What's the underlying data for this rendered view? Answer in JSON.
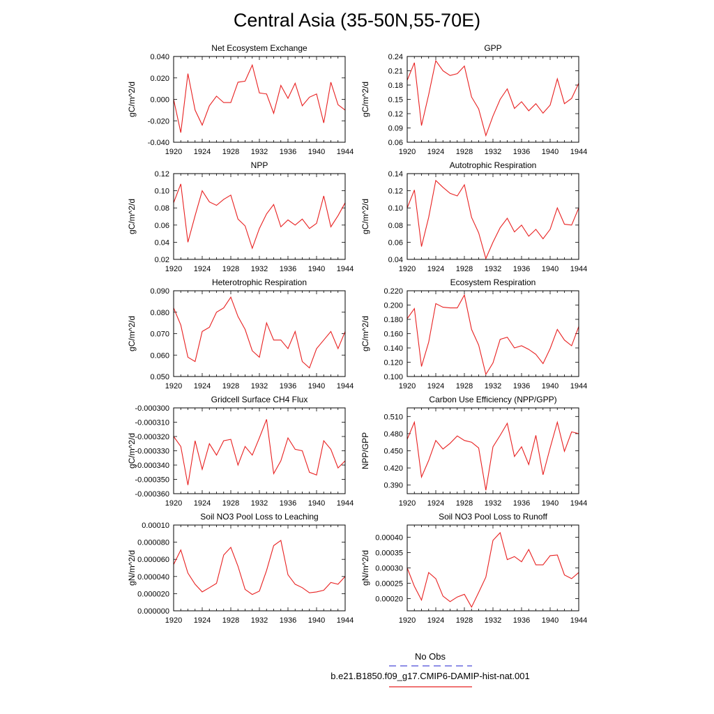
{
  "title": "Central Asia (35-50N,55-70E)",
  "legend": {
    "entries": [
      {
        "label": "No Obs",
        "color": "#4a4ad8",
        "dash": true
      },
      {
        "label": "b.e21.B1850.f09_g17.CMIP6-DAMIP-hist-nat.001",
        "color": "#e82020",
        "dash": false
      }
    ]
  },
  "chart_data": [
    {
      "type": "line",
      "title": "Net Ecosystem Exchange",
      "ylabel": "gC/m^2/d",
      "ylim": [
        -0.04,
        0.04
      ],
      "yticks": [
        -0.04,
        -0.02,
        0,
        0.02,
        0.04
      ],
      "ytick_labels": [
        "-0.040",
        "-0.020",
        "0.000",
        "0.020",
        "0.040"
      ],
      "xlim": [
        1920,
        1944
      ],
      "xticks": [
        1920,
        1924,
        1928,
        1932,
        1936,
        1940,
        1944
      ],
      "xtick_labels": [
        "1920",
        "1924",
        "1928",
        "1932",
        "1936",
        "1940",
        "1944"
      ],
      "x": [
        1920,
        1921,
        1922,
        1923,
        1924,
        1925,
        1926,
        1927,
        1928,
        1929,
        1930,
        1931,
        1932,
        1933,
        1934,
        1935,
        1936,
        1937,
        1938,
        1939,
        1940,
        1941,
        1942,
        1943,
        1944
      ],
      "values": [
        0.0,
        -0.031,
        0.024,
        -0.01,
        -0.024,
        -0.006,
        0.003,
        -0.003,
        -0.003,
        0.016,
        0.017,
        0.032,
        0.006,
        0.005,
        -0.013,
        0.013,
        0.001,
        0.015,
        -0.006,
        0.002,
        0.005,
        -0.022,
        0.016,
        -0.005,
        -0.01
      ]
    },
    {
      "type": "line",
      "title": "GPP",
      "ylabel": "gC/m^2/d",
      "ylim": [
        0.06,
        0.24
      ],
      "yticks": [
        0.06,
        0.09,
        0.12,
        0.15,
        0.18,
        0.21,
        0.24
      ],
      "ytick_labels": [
        "0.06",
        "0.09",
        "0.12",
        "0.15",
        "0.18",
        "0.21",
        "0.24"
      ],
      "xlim": [
        1920,
        1944
      ],
      "xticks": [
        1920,
        1924,
        1928,
        1932,
        1936,
        1940,
        1944
      ],
      "xtick_labels": [
        "1920",
        "1924",
        "1928",
        "1932",
        "1936",
        "1940",
        "1944"
      ],
      "x": [
        1920,
        1921,
        1922,
        1923,
        1924,
        1925,
        1926,
        1927,
        1928,
        1929,
        1930,
        1931,
        1932,
        1933,
        1934,
        1935,
        1936,
        1937,
        1938,
        1939,
        1940,
        1941,
        1942,
        1943,
        1944
      ],
      "values": [
        0.19,
        0.227,
        0.095,
        0.16,
        0.231,
        0.21,
        0.2,
        0.204,
        0.22,
        0.155,
        0.13,
        0.074,
        0.115,
        0.15,
        0.172,
        0.131,
        0.145,
        0.126,
        0.141,
        0.121,
        0.138,
        0.193,
        0.141,
        0.152,
        0.184
      ]
    },
    {
      "type": "line",
      "title": "NPP",
      "ylabel": "gC/m^2/d",
      "ylim": [
        0.02,
        0.12
      ],
      "yticks": [
        0.02,
        0.04,
        0.06,
        0.08,
        0.1,
        0.12
      ],
      "ytick_labels": [
        "0.02",
        "0.04",
        "0.06",
        "0.08",
        "0.10",
        "0.12"
      ],
      "xlim": [
        1920,
        1944
      ],
      "xticks": [
        1920,
        1924,
        1928,
        1932,
        1936,
        1940,
        1944
      ],
      "xtick_labels": [
        "1920",
        "1924",
        "1928",
        "1932",
        "1936",
        "1940",
        "1944"
      ],
      "x": [
        1920,
        1921,
        1922,
        1923,
        1924,
        1925,
        1926,
        1927,
        1928,
        1929,
        1930,
        1931,
        1932,
        1933,
        1934,
        1935,
        1936,
        1937,
        1938,
        1939,
        1940,
        1941,
        1942,
        1943,
        1944
      ],
      "values": [
        0.086,
        0.108,
        0.04,
        0.071,
        0.1,
        0.087,
        0.083,
        0.09,
        0.095,
        0.067,
        0.059,
        0.033,
        0.056,
        0.073,
        0.084,
        0.058,
        0.066,
        0.06,
        0.067,
        0.056,
        0.062,
        0.094,
        0.058,
        0.071,
        0.086
      ]
    },
    {
      "type": "line",
      "title": "Autotrophic Respiration",
      "ylabel": "gC/m^2/d",
      "ylim": [
        0.04,
        0.14
      ],
      "yticks": [
        0.04,
        0.06,
        0.08,
        0.1,
        0.12,
        0.14
      ],
      "ytick_labels": [
        "0.04",
        "0.06",
        "0.08",
        "0.10",
        "0.12",
        "0.14"
      ],
      "xlim": [
        1920,
        1944
      ],
      "xticks": [
        1920,
        1924,
        1928,
        1932,
        1936,
        1940,
        1944
      ],
      "xtick_labels": [
        "1920",
        "1924",
        "1928",
        "1932",
        "1936",
        "1940",
        "1944"
      ],
      "x": [
        1920,
        1921,
        1922,
        1923,
        1924,
        1925,
        1926,
        1927,
        1928,
        1929,
        1930,
        1931,
        1932,
        1933,
        1934,
        1935,
        1936,
        1937,
        1938,
        1939,
        1940,
        1941,
        1942,
        1943,
        1944
      ],
      "values": [
        0.1,
        0.121,
        0.055,
        0.089,
        0.132,
        0.124,
        0.117,
        0.114,
        0.127,
        0.089,
        0.071,
        0.041,
        0.06,
        0.077,
        0.088,
        0.072,
        0.08,
        0.067,
        0.075,
        0.064,
        0.075,
        0.1,
        0.081,
        0.08,
        0.1
      ]
    },
    {
      "type": "line",
      "title": "Heterotrophic Respiration",
      "ylabel": "gC/m^2/d",
      "ylim": [
        0.05,
        0.09
      ],
      "yticks": [
        0.05,
        0.06,
        0.07,
        0.08,
        0.09
      ],
      "ytick_labels": [
        "0.050",
        "0.060",
        "0.070",
        "0.080",
        "0.090"
      ],
      "xlim": [
        1920,
        1944
      ],
      "xticks": [
        1920,
        1924,
        1928,
        1932,
        1936,
        1940,
        1944
      ],
      "xtick_labels": [
        "1920",
        "1924",
        "1928",
        "1932",
        "1936",
        "1940",
        "1944"
      ],
      "x": [
        1920,
        1921,
        1922,
        1923,
        1924,
        1925,
        1926,
        1927,
        1928,
        1929,
        1930,
        1931,
        1932,
        1933,
        1934,
        1935,
        1936,
        1937,
        1938,
        1939,
        1940,
        1941,
        1942,
        1943,
        1944
      ],
      "values": [
        0.082,
        0.074,
        0.059,
        0.057,
        0.071,
        0.073,
        0.08,
        0.082,
        0.087,
        0.078,
        0.072,
        0.062,
        0.059,
        0.075,
        0.067,
        0.067,
        0.063,
        0.071,
        0.057,
        0.054,
        0.063,
        0.067,
        0.071,
        0.063,
        0.071
      ]
    },
    {
      "type": "line",
      "title": "Ecosystem Respiration",
      "ylabel": "gC/m^2/d",
      "ylim": [
        0.1,
        0.22
      ],
      "yticks": [
        0.1,
        0.12,
        0.14,
        0.16,
        0.18,
        0.2,
        0.22
      ],
      "ytick_labels": [
        "0.100",
        "0.120",
        "0.140",
        "0.160",
        "0.180",
        "0.200",
        "0.220"
      ],
      "xlim": [
        1920,
        1944
      ],
      "xticks": [
        1920,
        1924,
        1928,
        1932,
        1936,
        1940,
        1944
      ],
      "xtick_labels": [
        "1920",
        "1924",
        "1928",
        "1932",
        "1936",
        "1940",
        "1944"
      ],
      "x": [
        1920,
        1921,
        1922,
        1923,
        1924,
        1925,
        1926,
        1927,
        1928,
        1929,
        1930,
        1931,
        1932,
        1933,
        1934,
        1935,
        1936,
        1937,
        1938,
        1939,
        1940,
        1941,
        1942,
        1943,
        1944
      ],
      "values": [
        0.181,
        0.195,
        0.114,
        0.148,
        0.202,
        0.197,
        0.196,
        0.196,
        0.214,
        0.166,
        0.144,
        0.103,
        0.119,
        0.152,
        0.155,
        0.14,
        0.143,
        0.138,
        0.131,
        0.118,
        0.139,
        0.166,
        0.151,
        0.143,
        0.17
      ]
    },
    {
      "type": "line",
      "title": "Gridcell Surface CH4 Flux",
      "ylabel": "gC/m^2/d",
      "ylim": [
        -0.00036,
        -0.0003
      ],
      "yticks": [
        -0.00036,
        -0.00035,
        -0.00034,
        -0.00033,
        -0.00032,
        -0.00031,
        -0.0003
      ],
      "ytick_labels": [
        "-0.000360",
        "-0.000350",
        "-0.000340",
        "-0.000330",
        "-0.000320",
        "-0.000310",
        "-0.000300"
      ],
      "xlim": [
        1920,
        1944
      ],
      "xticks": [
        1920,
        1924,
        1928,
        1932,
        1936,
        1940,
        1944
      ],
      "xtick_labels": [
        "1920",
        "1924",
        "1928",
        "1932",
        "1936",
        "1940",
        "1944"
      ],
      "x": [
        1920,
        1921,
        1922,
        1923,
        1924,
        1925,
        1926,
        1927,
        1928,
        1929,
        1930,
        1931,
        1932,
        1933,
        1934,
        1935,
        1936,
        1937,
        1938,
        1939,
        1940,
        1941,
        1942,
        1943,
        1944
      ],
      "values": [
        -0.00032,
        -0.000327,
        -0.000354,
        -0.000323,
        -0.000343,
        -0.000325,
        -0.000333,
        -0.000323,
        -0.000322,
        -0.00034,
        -0.000327,
        -0.000333,
        -0.000321,
        -0.000308,
        -0.000346,
        -0.000337,
        -0.000321,
        -0.000329,
        -0.00033,
        -0.000345,
        -0.000347,
        -0.000323,
        -0.000329,
        -0.000342,
        -0.000337
      ]
    },
    {
      "type": "line",
      "title": "Carbon Use Efficiency (NPP/GPP)",
      "ylabel": "NPP/GPP",
      "ylim": [
        0.375,
        0.525
      ],
      "yticks": [
        0.39,
        0.42,
        0.45,
        0.48,
        0.51
      ],
      "ytick_labels": [
        "0.390",
        "0.420",
        "0.450",
        "0.480",
        "0.510"
      ],
      "xlim": [
        1920,
        1944
      ],
      "xticks": [
        1920,
        1924,
        1928,
        1932,
        1936,
        1940,
        1944
      ],
      "xtick_labels": [
        "1920",
        "1924",
        "1928",
        "1932",
        "1936",
        "1940",
        "1944"
      ],
      "x": [
        1920,
        1921,
        1922,
        1923,
        1924,
        1925,
        1926,
        1927,
        1928,
        1929,
        1930,
        1931,
        1932,
        1933,
        1934,
        1935,
        1936,
        1937,
        1938,
        1939,
        1940,
        1941,
        1942,
        1943,
        1944
      ],
      "values": [
        0.47,
        0.5,
        0.404,
        0.433,
        0.468,
        0.453,
        0.463,
        0.476,
        0.468,
        0.465,
        0.455,
        0.381,
        0.457,
        0.477,
        0.498,
        0.44,
        0.457,
        0.426,
        0.477,
        0.408,
        0.455,
        0.5,
        0.449,
        0.483,
        0.48
      ]
    },
    {
      "type": "line",
      "title": "Soil NO3 Pool Loss to Leaching",
      "ylabel": "gN/m^2/d",
      "ylim": [
        0,
        0.0001
      ],
      "yticks": [
        0,
        2e-05,
        4e-05,
        6e-05,
        8e-05,
        0.0001
      ],
      "ytick_labels": [
        "0.000000",
        "0.000020",
        "0.000040",
        "0.000060",
        "0.000080",
        "0.00010"
      ],
      "xlim": [
        1920,
        1944
      ],
      "xticks": [
        1920,
        1924,
        1928,
        1932,
        1936,
        1940,
        1944
      ],
      "xtick_labels": [
        "1920",
        "1924",
        "1928",
        "1932",
        "1936",
        "1940",
        "1944"
      ],
      "x": [
        1920,
        1921,
        1922,
        1923,
        1924,
        1925,
        1926,
        1927,
        1928,
        1929,
        1930,
        1931,
        1932,
        1933,
        1934,
        1935,
        1936,
        1937,
        1938,
        1939,
        1940,
        1941,
        1942,
        1943,
        1944
      ],
      "values": [
        5.4e-05,
        7.1e-05,
        4.4e-05,
        3.1e-05,
        2.2e-05,
        2.7e-05,
        3.2e-05,
        6.5e-05,
        7.4e-05,
        5.2e-05,
        2.5e-05,
        1.9e-05,
        2.3e-05,
        4.7e-05,
        7.6e-05,
        8.2e-05,
        4.2e-05,
        3.1e-05,
        2.7e-05,
        2.1e-05,
        2.2e-05,
        2.4e-05,
        3.3e-05,
        3.1e-05,
        4e-05
      ]
    },
    {
      "type": "line",
      "title": "Soil NO3 Pool Loss to Runoff",
      "ylabel": "gN/m^2/d",
      "ylim": [
        0.00016,
        0.00044
      ],
      "yticks": [
        0.0002,
        0.00025,
        0.0003,
        0.00035,
        0.0004
      ],
      "ytick_labels": [
        "0.00020",
        "0.00025",
        "0.00030",
        "0.00035",
        "0.00040"
      ],
      "xlim": [
        1920,
        1944
      ],
      "xticks": [
        1920,
        1924,
        1928,
        1932,
        1936,
        1940,
        1944
      ],
      "xtick_labels": [
        "1920",
        "1924",
        "1928",
        "1932",
        "1936",
        "1940",
        "1944"
      ],
      "x": [
        1920,
        1921,
        1922,
        1923,
        1924,
        1925,
        1926,
        1927,
        1928,
        1929,
        1930,
        1931,
        1932,
        1933,
        1934,
        1935,
        1936,
        1937,
        1938,
        1939,
        1940,
        1941,
        1942,
        1943,
        1944
      ],
      "values": [
        0.0003,
        0.00024,
        0.000195,
        0.000285,
        0.000265,
        0.000208,
        0.00019,
        0.000205,
        0.000214,
        0.000172,
        0.00022,
        0.00027,
        0.00039,
        0.000415,
        0.000327,
        0.000337,
        0.00032,
        0.00036,
        0.00031,
        0.00031,
        0.00034,
        0.000342,
        0.000277,
        0.000265,
        0.000285
      ]
    }
  ]
}
